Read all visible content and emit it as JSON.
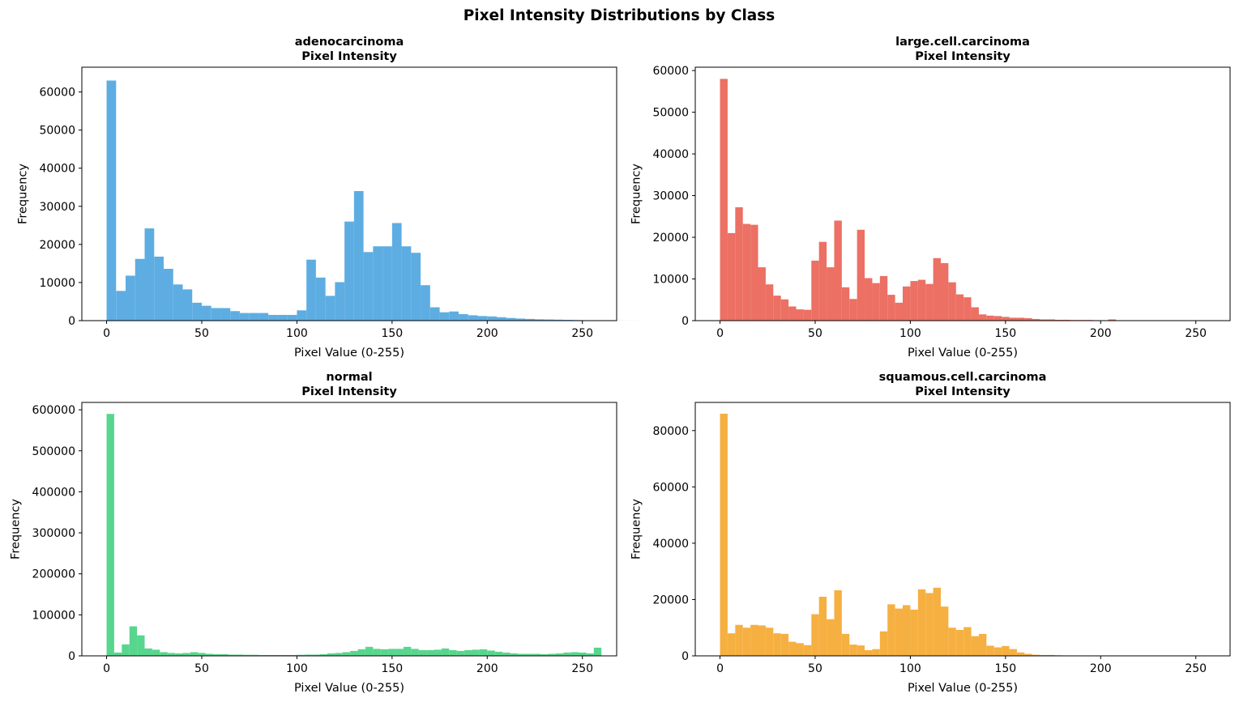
{
  "suptitle": "Pixel Intensity Distributions by Class",
  "chart_data": [
    {
      "type": "bar",
      "title": "adenocarcinoma",
      "subtitle": "Pixel Intensity",
      "xlabel": "Pixel Value (0-255)",
      "ylabel": "Frequency",
      "color": "#5dade2",
      "xlim": [
        -13,
        268
      ],
      "ylim": [
        0,
        66500
      ],
      "xticks": [
        0,
        50,
        100,
        150,
        200,
        250
      ],
      "yticks": [
        0,
        10000,
        20000,
        30000,
        40000,
        50000,
        60000
      ],
      "bin_width": 5,
      "bin_start": 0,
      "values": [
        63000,
        7800,
        11800,
        16200,
        24200,
        16800,
        13600,
        9500,
        8200,
        4700,
        3900,
        3300,
        3300,
        2500,
        2000,
        2000,
        2000,
        1500,
        1500,
        1500,
        2700,
        16000,
        11300,
        6500,
        10100,
        26000,
        34000,
        18000,
        19500,
        19500,
        25600,
        19500,
        17800,
        9300,
        3500,
        2200,
        2400,
        1700,
        1400,
        1200,
        1100,
        900,
        700,
        550,
        450,
        350,
        300,
        250,
        200,
        150,
        100,
        70,
        50,
        30,
        20,
        10,
        5,
        0,
        0,
        0,
        0,
        0,
        0,
        0
      ]
    },
    {
      "type": "bar",
      "title": "large.cell.carcinoma",
      "subtitle": "Pixel Intensity",
      "xlabel": "Pixel Value (0-255)",
      "ylabel": "Frequency",
      "color": "#ec7063",
      "xlim": [
        -13,
        268
      ],
      "ylim": [
        0,
        60800
      ],
      "xticks": [
        0,
        50,
        100,
        150,
        200,
        250
      ],
      "yticks": [
        0,
        10000,
        20000,
        30000,
        40000,
        50000,
        60000
      ],
      "bin_width": 4,
      "bin_start": 0,
      "values": [
        58000,
        21000,
        27200,
        23200,
        23000,
        12800,
        8700,
        6000,
        5100,
        3400,
        2700,
        2600,
        14400,
        18900,
        12800,
        24000,
        8000,
        5200,
        21800,
        10200,
        9000,
        10700,
        6200,
        4300,
        8200,
        9500,
        9800,
        8800,
        15000,
        13800,
        9200,
        6300,
        5600,
        3200,
        1500,
        1200,
        1100,
        900,
        700,
        700,
        600,
        400,
        300,
        300,
        200,
        200,
        150,
        150,
        150,
        100,
        80,
        300,
        40,
        30,
        20,
        10,
        10,
        5,
        0,
        0,
        0,
        0,
        0,
        0
      ]
    },
    {
      "type": "bar",
      "title": "normal",
      "subtitle": "Pixel Intensity",
      "xlabel": "Pixel Value (0-255)",
      "ylabel": "Frequency",
      "color": "#58d68d",
      "xlim": [
        -13,
        268
      ],
      "ylim": [
        0,
        618000
      ],
      "xticks": [
        0,
        50,
        100,
        150,
        200,
        250
      ],
      "yticks": [
        0,
        100000,
        200000,
        300000,
        400000,
        500000,
        600000
      ],
      "bin_width": 4,
      "bin_start": 0,
      "values": [
        590000,
        8000,
        28000,
        72000,
        50000,
        18000,
        15000,
        9000,
        7000,
        6000,
        7000,
        9000,
        7000,
        5000,
        4000,
        4000,
        3000,
        3000,
        2500,
        2500,
        2000,
        2000,
        2000,
        2000,
        2000,
        2500,
        3000,
        3000,
        4000,
        6000,
        7000,
        9000,
        12000,
        16000,
        22000,
        17000,
        16000,
        17000,
        17000,
        22000,
        17000,
        14000,
        14000,
        15000,
        18000,
        14000,
        12000,
        14000,
        15000,
        16000,
        13000,
        10000,
        8000,
        6000,
        5000,
        5000,
        5000,
        4000,
        5000,
        6000,
        8000,
        9000,
        8000,
        6000,
        20000
      ]
    },
    {
      "type": "bar",
      "title": "squamous.cell.carcinoma",
      "subtitle": "Pixel Intensity",
      "xlabel": "Pixel Value (0-255)",
      "ylabel": "Frequency",
      "color": "#f5b041",
      "xlim": [
        -13,
        268
      ],
      "ylim": [
        0,
        90000
      ],
      "xticks": [
        0,
        50,
        100,
        150,
        200,
        250
      ],
      "yticks": [
        0,
        20000,
        40000,
        60000,
        80000
      ],
      "bin_width": 4,
      "bin_start": 0,
      "values": [
        86000,
        8000,
        11000,
        10000,
        11000,
        10800,
        10000,
        8000,
        7800,
        5000,
        4500,
        3800,
        14800,
        21000,
        13000,
        23300,
        7800,
        4000,
        3700,
        2000,
        2400,
        8700,
        18300,
        16800,
        18000,
        16400,
        23600,
        22300,
        24200,
        17500,
        10000,
        9200,
        10200,
        7000,
        7800,
        3600,
        3000,
        3500,
        2400,
        1200,
        700,
        400,
        300,
        300,
        200,
        150,
        100,
        80,
        50,
        30,
        20,
        10,
        10,
        5,
        0,
        0,
        0,
        0,
        0,
        0,
        0,
        0,
        0,
        0
      ]
    }
  ]
}
